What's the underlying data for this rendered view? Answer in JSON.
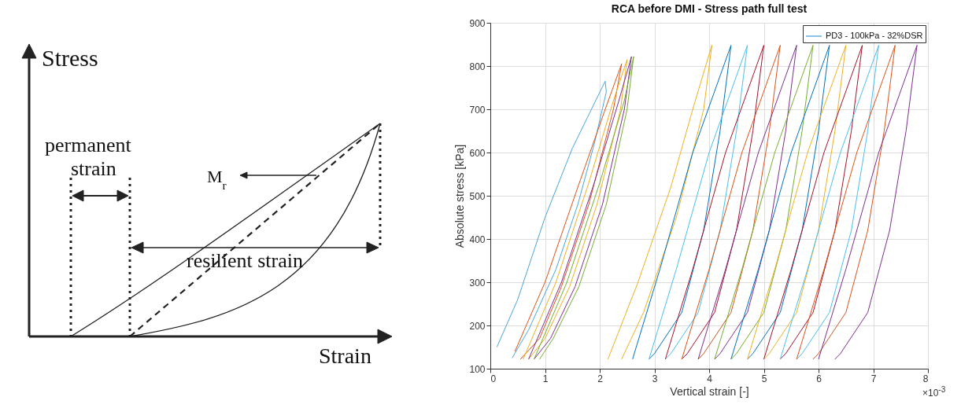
{
  "chart_data": [
    {
      "type": "other",
      "annotations": [
        "Stress",
        "Strain",
        "permanent strain",
        "M$_{r}$",
        "resilient strain"
      ]
    },
    {
      "type": "line",
      "title": "RCA before DMI - Stress path full test",
      "xlabel": "Vertical strain [-]",
      "ylabel": "Absolute stress [kPa]",
      "annotations": [
        "×10$^{-3}$"
      ],
      "xlim": [
        0,
        8
      ],
      "xticks": [
        0,
        1,
        2,
        3,
        4,
        5,
        6,
        7,
        8
      ],
      "ylim": [
        100,
        900
      ],
      "yticks": [
        100,
        200,
        300,
        400,
        500,
        600,
        700,
        800,
        900
      ],
      "grid": true,
      "legend": "top right",
      "series": [
        {
          "name": "PD3 - 100kPa - 32%DSR",
          "color": "#4aa6d9",
          "x": [
            0.12,
            0.5,
            1.0,
            1.5,
            2.1,
            2.12,
            1.9,
            1.6,
            1.2,
            0.7,
            0.4
          ],
          "values": [
            150,
            260,
            450,
            610,
            765,
            740,
            620,
            480,
            330,
            190,
            125
          ]
        },
        {
          "color": "#d95319",
          "x": [
            0.45,
            1.0,
            1.6,
            2.1,
            2.4,
            2.25,
            1.8,
            1.3,
            0.9,
            0.55
          ],
          "values": [
            140,
            300,
            520,
            700,
            805,
            700,
            480,
            290,
            170,
            122
          ]
        },
        {
          "color": "#edb120",
          "x": [
            0.6,
            1.2,
            1.8,
            2.25,
            2.5,
            2.38,
            1.95,
            1.45,
            1.0,
            0.7
          ],
          "values": [
            122,
            300,
            530,
            720,
            815,
            700,
            480,
            290,
            170,
            122
          ]
        },
        {
          "color": "#7e2f8e",
          "x": [
            0.7,
            1.3,
            1.9,
            2.35,
            2.58,
            2.45,
            2.05,
            1.55,
            1.1,
            0.8
          ],
          "values": [
            122,
            300,
            530,
            720,
            822,
            700,
            480,
            290,
            170,
            122
          ]
        },
        {
          "color": "#77ac30",
          "x": [
            0.8,
            1.4,
            2.0,
            2.45,
            2.62,
            2.5,
            2.12,
            1.62,
            1.15,
            0.9
          ],
          "values": [
            122,
            300,
            530,
            720,
            822,
            700,
            480,
            290,
            170,
            122
          ]
        },
        {
          "color": "#edb120",
          "x": [
            2.15,
            2.7,
            3.3,
            3.7,
            4.05,
            3.9,
            3.4,
            2.8,
            2.4
          ],
          "values": [
            122,
            300,
            520,
            700,
            848,
            700,
            450,
            230,
            122
          ]
        },
        {
          "color": "#0072bd",
          "x": [
            2.6,
            3.1,
            3.7,
            4.4,
            4.2,
            3.9,
            3.5,
            3.0,
            2.9
          ],
          "values": [
            122,
            330,
            600,
            848,
            650,
            420,
            230,
            135,
            122
          ]
        },
        {
          "color": "#4dbeee",
          "x": [
            2.9,
            3.4,
            4.0,
            4.7,
            4.5,
            4.2,
            3.8,
            3.3,
            3.2
          ],
          "values": [
            122,
            330,
            600,
            848,
            650,
            420,
            230,
            135,
            122
          ]
        },
        {
          "color": "#a2142f",
          "x": [
            3.2,
            3.7,
            4.3,
            5.0,
            4.8,
            4.5,
            4.1,
            3.6,
            3.5
          ],
          "values": [
            122,
            330,
            600,
            848,
            650,
            420,
            230,
            135,
            122
          ]
        },
        {
          "color": "#d95319",
          "x": [
            3.5,
            4.0,
            4.6,
            5.3,
            5.1,
            4.8,
            4.4,
            3.9,
            3.8
          ],
          "values": [
            122,
            330,
            600,
            848,
            650,
            420,
            230,
            135,
            122
          ]
        },
        {
          "color": "#7e2f8e",
          "x": [
            3.8,
            4.3,
            4.9,
            5.6,
            5.4,
            5.1,
            4.7,
            4.2,
            4.1
          ],
          "values": [
            122,
            330,
            600,
            848,
            650,
            420,
            230,
            135,
            122
          ]
        },
        {
          "color": "#77ac30",
          "x": [
            4.1,
            4.6,
            5.2,
            5.9,
            5.7,
            5.4,
            5.0,
            4.5,
            4.4
          ],
          "values": [
            122,
            330,
            600,
            848,
            650,
            420,
            230,
            135,
            122
          ]
        },
        {
          "color": "#0072bd",
          "x": [
            4.4,
            4.9,
            5.5,
            6.2,
            6.0,
            5.7,
            5.3,
            4.8,
            4.7
          ],
          "values": [
            122,
            330,
            600,
            848,
            650,
            420,
            230,
            135,
            122
          ]
        },
        {
          "color": "#edb120",
          "x": [
            4.7,
            5.2,
            5.8,
            6.5,
            6.3,
            6.0,
            5.6,
            5.1,
            5.0
          ],
          "values": [
            122,
            330,
            600,
            848,
            650,
            420,
            230,
            135,
            122
          ]
        },
        {
          "color": "#a2142f",
          "x": [
            5.0,
            5.5,
            6.1,
            6.8,
            6.6,
            6.3,
            5.9,
            5.4,
            5.3
          ],
          "values": [
            122,
            330,
            600,
            848,
            650,
            420,
            230,
            135,
            122
          ]
        },
        {
          "color": "#4dbeee",
          "x": [
            5.3,
            5.8,
            6.4,
            7.1,
            6.9,
            6.6,
            6.2,
            5.7,
            5.6
          ],
          "values": [
            122,
            330,
            600,
            848,
            650,
            420,
            230,
            135,
            122
          ]
        },
        {
          "color": "#d95319",
          "x": [
            5.6,
            6.1,
            6.7,
            7.4,
            7.2,
            6.9,
            6.5,
            6.0,
            5.9
          ],
          "values": [
            122,
            330,
            600,
            848,
            650,
            420,
            230,
            135,
            122
          ]
        },
        {
          "color": "#7e2f8e",
          "x": [
            6.0,
            6.5,
            7.1,
            7.8,
            7.6,
            7.3,
            6.9,
            6.4,
            6.3
          ],
          "values": [
            122,
            330,
            600,
            848,
            650,
            420,
            230,
            135,
            122
          ]
        }
      ]
    }
  ]
}
